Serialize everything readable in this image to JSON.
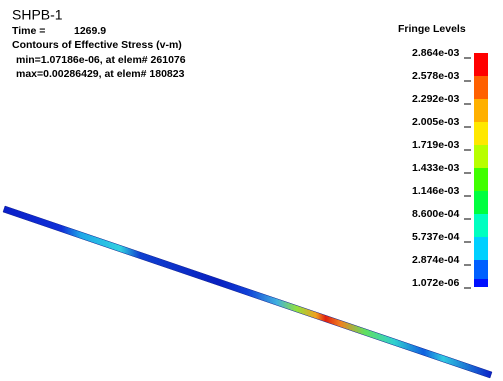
{
  "header": {
    "title": "SHPB-1",
    "time_label": "Time =",
    "time_value": "1269.9",
    "contour": "Contours of Effective Stress (v-m)",
    "min": "min=1.07186e-06, at elem# 261076",
    "max": "max=0.00286429, at elem# 180823"
  },
  "legend": {
    "title": "Fringe Levels",
    "levels": [
      "2.864e-03",
      "2.578e-03",
      "2.292e-03",
      "2.005e-03",
      "1.719e-03",
      "1.433e-03",
      "1.146e-03",
      "8.600e-04",
      "5.737e-04",
      "2.874e-04",
      "1.072e-06"
    ]
  }
}
